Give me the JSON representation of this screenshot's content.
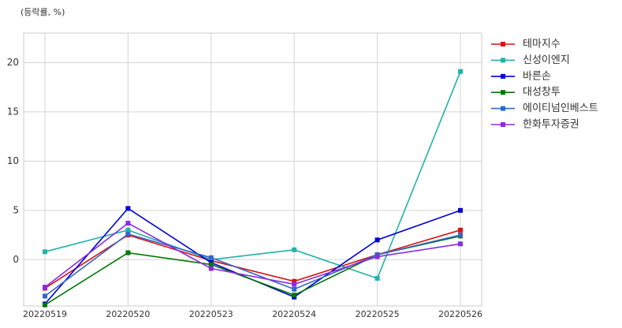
{
  "chart_data": {
    "type": "line",
    "y_label": "(등락률, %)",
    "categories": [
      "20220519",
      "20220520",
      "20220523",
      "20220524",
      "20220525",
      "20220526"
    ],
    "series": [
      {
        "name": "테마지수",
        "color": "#dd1111",
        "values": [
          -2.9,
          2.5,
          -0.1,
          -2.2,
          0.5,
          3.0
        ]
      },
      {
        "name": "신성이엔지",
        "color": "#20b2aa",
        "values": [
          0.8,
          3.0,
          0.0,
          1.0,
          -1.9,
          19.1
        ]
      },
      {
        "name": "바른손",
        "color": "#0000dd",
        "values": [
          -4.5,
          5.2,
          -0.3,
          -3.8,
          2.0,
          5.0
        ]
      },
      {
        "name": "대성창투",
        "color": "#007700",
        "values": [
          -4.6,
          0.7,
          -0.5,
          -3.6,
          0.5,
          2.4
        ]
      },
      {
        "name": "에이티넘인베스트",
        "color": "#3366cc",
        "values": [
          -3.7,
          2.6,
          0.2,
          -3.0,
          0.5,
          2.5
        ]
      },
      {
        "name": "한화투자증권",
        "color": "#8a2be2",
        "values": [
          -2.8,
          3.7,
          -0.9,
          -2.5,
          0.3,
          1.6
        ]
      }
    ],
    "ylim": [
      -4.7,
      23
    ],
    "yticks": [
      0,
      5,
      10,
      15,
      20
    ],
    "grid": true,
    "legend": "outside-right"
  }
}
